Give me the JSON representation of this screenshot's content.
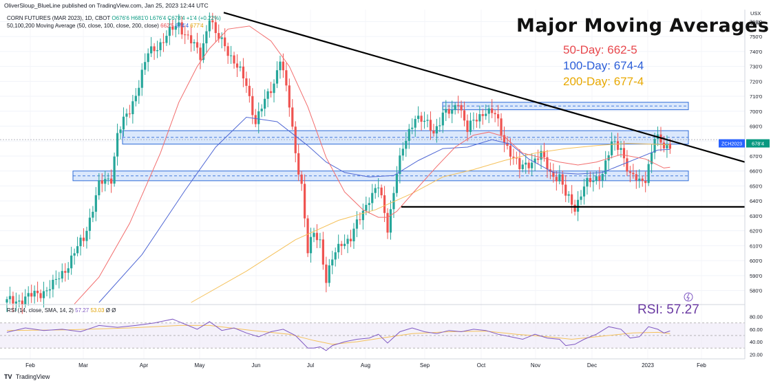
{
  "header": {
    "published": "OliverSloup_BlueLine published on TradingView.com, Jan 25, 2023 12:44 UTC",
    "symbol_line": "CORN FUTURES (MAR 2023), 1D, CBOT",
    "ohlc": "O676'6  H681'0  L676'4  C678'4  +1'4 (+0.22%)",
    "ma_line": "50,100,200 Moving Average (50, close, 100, close, 200, close)",
    "ma_values": [
      "662'5",
      "674'4",
      "677'4"
    ],
    "rsi_line": "RSI (14, close, SMA, 14, 2)",
    "rsi_values": [
      "57.27",
      "53.03",
      "Ø",
      "Ø"
    ]
  },
  "overlay": {
    "title": "Major Moving Averages",
    "ma50": "50-Day: 662-5",
    "ma100": "100-Day: 674-4",
    "ma200": "200-Day: 677-4",
    "rsi": "RSI: 57.27"
  },
  "footer": {
    "brand": "TradingView",
    "logo": "TV"
  },
  "colors": {
    "up": "#26a69a",
    "down": "#ef5350",
    "ma50": "#f26c6c",
    "ma100": "#4f67d4",
    "ma200": "#f5c15a",
    "rsi": "#7e57c2",
    "zone_fill": "#cfe0fb",
    "zone_edge": "#2e6bd8"
  },
  "chart_data": [
    {
      "type": "candlestick",
      "title": "CORN FUTURES (MAR 2023), 1D, CBOT",
      "currency": "USX",
      "price_unit": "BUA",
      "y_ticks": [
        5800,
        5900,
        6000,
        6100,
        6200,
        6300,
        6400,
        6500,
        6600,
        6700,
        6800,
        6900,
        7000,
        7100,
        7200,
        7300,
        7400,
        7500,
        7600
      ],
      "y_tick_labels": [
        "580'0",
        "590'0",
        "600'0",
        "610'0",
        "620'0",
        "630'0",
        "640'0",
        "650'0",
        "660'0",
        "670'0",
        "680'0",
        "690'0",
        "700'0",
        "710'0",
        "720'0",
        "730'0",
        "740'0",
        "750'0",
        "760'0"
      ],
      "ylim": [
        5720,
        7680
      ],
      "x_labels": [
        "Feb",
        "Mar",
        "Apr",
        "May",
        "Jun",
        "Jul",
        "Aug",
        "Sep",
        "Oct",
        "Nov",
        "Dec",
        "2023",
        "Feb"
      ],
      "close_path": [
        [
          0,
          5720
        ],
        [
          8,
          5760
        ],
        [
          15,
          5830
        ],
        [
          20,
          5980
        ],
        [
          25,
          6150
        ],
        [
          30,
          6500
        ],
        [
          34,
          6560
        ],
        [
          36,
          6850
        ],
        [
          40,
          7000
        ],
        [
          46,
          7380
        ],
        [
          52,
          7500
        ],
        [
          56,
          7590
        ],
        [
          60,
          7460
        ],
        [
          63,
          7370
        ],
        [
          66,
          7640
        ],
        [
          68,
          7500
        ],
        [
          71,
          7450
        ],
        [
          75,
          7290
        ],
        [
          78,
          7180
        ],
        [
          81,
          6930
        ],
        [
          84,
          7060
        ],
        [
          87,
          7200
        ],
        [
          89,
          7360
        ],
        [
          92,
          7030
        ],
        [
          94,
          6730
        ],
        [
          96,
          6510
        ],
        [
          98,
          6050
        ],
        [
          100,
          6180
        ],
        [
          102,
          6140
        ],
        [
          104,
          5870
        ],
        [
          106,
          6000
        ],
        [
          109,
          6130
        ],
        [
          112,
          6150
        ],
        [
          115,
          6280
        ],
        [
          118,
          6430
        ],
        [
          121,
          6490
        ],
        [
          124,
          6220
        ],
        [
          127,
          6600
        ],
        [
          130,
          6800
        ],
        [
          133,
          6980
        ],
        [
          136,
          6920
        ],
        [
          139,
          6860
        ],
        [
          142,
          6990
        ],
        [
          145,
          6980
        ],
        [
          147,
          7080
        ],
        [
          150,
          6880
        ],
        [
          153,
          6940
        ],
        [
          156,
          7020
        ],
        [
          159,
          6970
        ],
        [
          161,
          6850
        ],
        [
          164,
          6730
        ],
        [
          167,
          6610
        ],
        [
          170,
          6660
        ],
        [
          174,
          6700
        ],
        [
          177,
          6590
        ],
        [
          180,
          6560
        ],
        [
          182,
          6430
        ],
        [
          185,
          6360
        ],
        [
          188,
          6500
        ],
        [
          191,
          6530
        ],
        [
          194,
          6600
        ],
        [
          197,
          6770
        ],
        [
          200,
          6760
        ],
        [
          203,
          6570
        ],
        [
          206,
          6520
        ],
        [
          208,
          6560
        ],
        [
          211,
          6820
        ],
        [
          214,
          6760
        ],
        [
          216,
          6785
        ]
      ],
      "ma50_path": [
        [
          22,
          5710
        ],
        [
          30,
          5890
        ],
        [
          40,
          6250
        ],
        [
          50,
          6720
        ],
        [
          56,
          7060
        ],
        [
          62,
          7300
        ],
        [
          66,
          7420
        ],
        [
          72,
          7550
        ],
        [
          79,
          7570
        ],
        [
          86,
          7470
        ],
        [
          92,
          7300
        ],
        [
          98,
          7030
        ],
        [
          104,
          6690
        ],
        [
          110,
          6460
        ],
        [
          116,
          6340
        ],
        [
          121,
          6290
        ],
        [
          124,
          6290
        ],
        [
          127,
          6330
        ],
        [
          133,
          6470
        ],
        [
          140,
          6630
        ],
        [
          146,
          6760
        ],
        [
          152,
          6840
        ],
        [
          157,
          6860
        ],
        [
          162,
          6830
        ],
        [
          168,
          6720
        ],
        [
          174,
          6690
        ],
        [
          180,
          6660
        ],
        [
          186,
          6640
        ],
        [
          192,
          6660
        ],
        [
          200,
          6710
        ],
        [
          208,
          6680
        ],
        [
          214,
          6620
        ],
        [
          216,
          6625
        ]
      ],
      "ma100_path": [
        [
          30,
          5720
        ],
        [
          44,
          6040
        ],
        [
          58,
          6470
        ],
        [
          68,
          6760
        ],
        [
          78,
          6960
        ],
        [
          88,
          6930
        ],
        [
          98,
          6770
        ],
        [
          104,
          6660
        ],
        [
          110,
          6590
        ],
        [
          118,
          6560
        ],
        [
          126,
          6570
        ],
        [
          134,
          6670
        ],
        [
          142,
          6750
        ],
        [
          150,
          6760
        ],
        [
          158,
          6810
        ],
        [
          164,
          6780
        ],
        [
          170,
          6680
        ],
        [
          178,
          6590
        ],
        [
          186,
          6580
        ],
        [
          194,
          6590
        ],
        [
          200,
          6640
        ],
        [
          206,
          6690
        ],
        [
          212,
          6740
        ],
        [
          216,
          6745
        ]
      ],
      "ma200_path": [
        [
          60,
          5720
        ],
        [
          78,
          5930
        ],
        [
          94,
          6140
        ],
        [
          108,
          6270
        ],
        [
          120,
          6340
        ],
        [
          132,
          6450
        ],
        [
          142,
          6560
        ],
        [
          152,
          6610
        ],
        [
          162,
          6670
        ],
        [
          172,
          6720
        ],
        [
          182,
          6750
        ],
        [
          192,
          6770
        ],
        [
          202,
          6785
        ],
        [
          210,
          6780
        ],
        [
          216,
          6775
        ]
      ],
      "zones": [
        [
          6780,
          6870
        ],
        [
          6535,
          6600
        ],
        [
          7010,
          7060
        ]
      ],
      "trend_lines": [
        {
          "name": "descending",
          "from": [
            66,
            7660
          ],
          "to": [
            240,
            6660
          ]
        },
        {
          "name": "support",
          "from": [
            125,
            6360
          ],
          "to": [
            240,
            6360
          ]
        }
      ],
      "last_price": {
        "label": "ZCH2023",
        "value": "678'4",
        "price": 6785
      }
    },
    {
      "type": "line",
      "title": "RSI (14, close, SMA, 14, 2)",
      "y_ticks": [
        20,
        40,
        60,
        80
      ],
      "y_tick_labels": [
        "20.00",
        "40.00",
        "60.00",
        "80.00"
      ],
      "ylim": [
        15,
        85
      ],
      "bands": [
        30,
        50,
        70
      ],
      "rsi_path": [
        [
          0,
          55
        ],
        [
          6,
          62
        ],
        [
          12,
          58
        ],
        [
          18,
          60
        ],
        [
          24,
          56
        ],
        [
          30,
          66
        ],
        [
          36,
          63
        ],
        [
          42,
          66
        ],
        [
          48,
          70
        ],
        [
          54,
          76
        ],
        [
          58,
          68
        ],
        [
          62,
          60
        ],
        [
          66,
          72
        ],
        [
          70,
          58
        ],
        [
          74,
          62
        ],
        [
          78,
          54
        ],
        [
          82,
          48
        ],
        [
          86,
          56
        ],
        [
          90,
          60
        ],
        [
          94,
          50
        ],
        [
          96,
          40
        ],
        [
          98,
          30
        ],
        [
          100,
          30
        ],
        [
          102,
          32
        ],
        [
          104,
          26
        ],
        [
          106,
          34
        ],
        [
          110,
          40
        ],
        [
          114,
          44
        ],
        [
          118,
          46
        ],
        [
          121,
          52
        ],
        [
          124,
          38
        ],
        [
          128,
          56
        ],
        [
          132,
          62
        ],
        [
          136,
          56
        ],
        [
          140,
          53
        ],
        [
          144,
          58
        ],
        [
          148,
          56
        ],
        [
          152,
          60
        ],
        [
          156,
          58
        ],
        [
          160,
          52
        ],
        [
          164,
          48
        ],
        [
          168,
          44
        ],
        [
          172,
          52
        ],
        [
          176,
          46
        ],
        [
          180,
          44
        ],
        [
          182,
          34
        ],
        [
          185,
          36
        ],
        [
          188,
          44
        ],
        [
          192,
          52
        ],
        [
          196,
          64
        ],
        [
          200,
          60
        ],
        [
          203,
          46
        ],
        [
          206,
          48
        ],
        [
          209,
          64
        ],
        [
          212,
          60
        ],
        [
          214,
          54
        ],
        [
          216,
          57.27
        ]
      ],
      "rsi_ma_path": [
        [
          0,
          58
        ],
        [
          20,
          59
        ],
        [
          40,
          62
        ],
        [
          56,
          66
        ],
        [
          66,
          66
        ],
        [
          80,
          58
        ],
        [
          92,
          52
        ],
        [
          100,
          42
        ],
        [
          106,
          36
        ],
        [
          114,
          40
        ],
        [
          122,
          46
        ],
        [
          132,
          53
        ],
        [
          144,
          56
        ],
        [
          156,
          57
        ],
        [
          166,
          52
        ],
        [
          176,
          48
        ],
        [
          184,
          44
        ],
        [
          194,
          49
        ],
        [
          204,
          54
        ],
        [
          212,
          55
        ],
        [
          216,
          53.03
        ]
      ]
    }
  ]
}
